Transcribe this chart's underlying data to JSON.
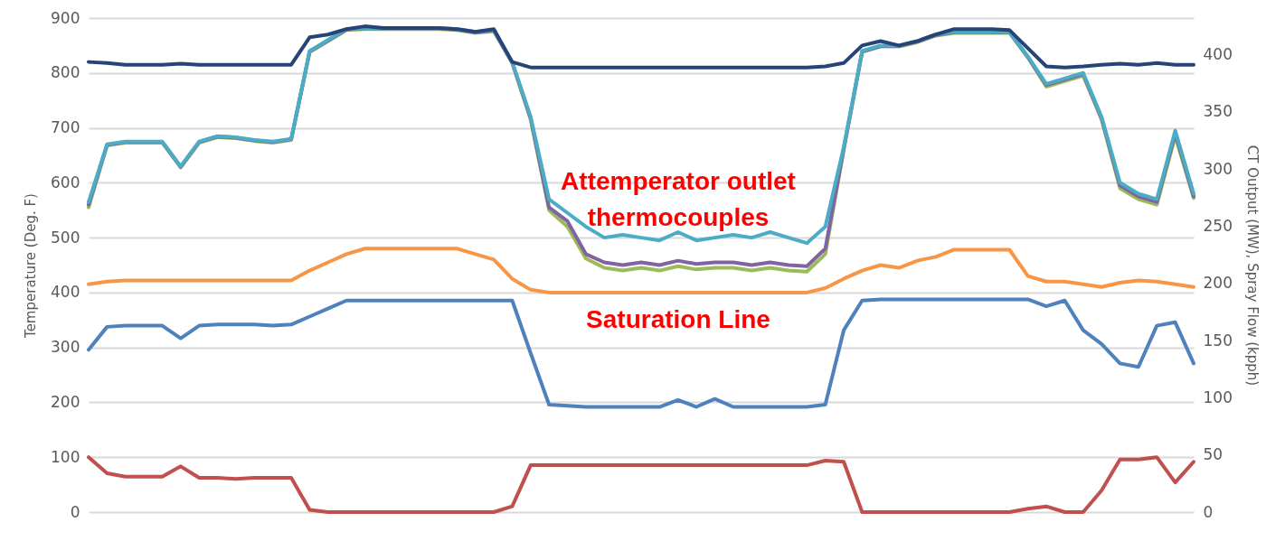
{
  "chart_data": {
    "type": "line",
    "ylabel": "Temperature (Deg. F)",
    "y2label": "CT Output (MW), Spray Flow (kpph)",
    "categories": [
      null,
      null,
      null,
      null,
      null,
      null,
      null,
      null,
      null,
      null,
      null,
      null,
      null,
      null,
      null,
      null,
      null,
      null,
      null,
      null,
      null,
      null,
      null,
      null,
      null,
      null,
      null,
      null,
      null,
      null,
      null,
      null,
      null,
      null,
      null,
      null,
      null,
      null,
      null,
      null,
      null,
      null,
      null,
      null,
      null,
      null,
      null,
      null,
      null,
      null,
      null,
      null,
      null,
      null,
      null,
      null,
      null,
      null,
      null,
      null,
      null
    ],
    "ylim": [
      0,
      900
    ],
    "yticks": [
      0,
      100,
      200,
      300,
      400,
      500,
      600,
      700,
      800,
      900
    ],
    "y2lim": [
      0,
      432
    ],
    "y2ticks": [
      0,
      50,
      100,
      150,
      200,
      250,
      300,
      350,
      400
    ],
    "grid": "y",
    "marker": "none",
    "line_style": "solid",
    "annotations": [
      "Attemperator outlet\nthermocouples",
      "Saturation Line"
    ],
    "series": [
      {
        "color": "#9bbb59",
        "values": [
          555,
          668,
          673,
          673,
          673,
          628,
          673,
          683,
          681,
          676,
          673,
          678,
          838,
          858,
          878,
          880,
          880,
          880,
          880,
          880,
          878,
          873,
          876,
          818,
          715,
          550,
          520,
          462,
          445,
          440,
          445,
          440,
          448,
          442,
          445,
          445,
          440,
          445,
          440,
          438,
          470,
          660,
          838,
          848,
          848,
          856,
          868,
          873,
          873,
          873,
          873,
          828,
          775,
          785,
          795,
          715,
          590,
          570,
          560,
          685,
          572
        ]
      },
      {
        "color": "#8064a2",
        "values": [
          560,
          669,
          674,
          674,
          674,
          629,
          674,
          684,
          682,
          677,
          674,
          679,
          839,
          859,
          879,
          881,
          881,
          881,
          881,
          881,
          879,
          874,
          877,
          819,
          718,
          555,
          530,
          470,
          455,
          450,
          455,
          450,
          458,
          452,
          455,
          455,
          450,
          455,
          450,
          448,
          480,
          662,
          839,
          849,
          849,
          857,
          869,
          874,
          874,
          874,
          874,
          829,
          778,
          788,
          798,
          718,
          595,
          575,
          565,
          690,
          575
        ]
      },
      {
        "color": "#4bacc6",
        "values": [
          565,
          670,
          675,
          675,
          675,
          630,
          675,
          685,
          683,
          678,
          675,
          680,
          840,
          860,
          880,
          882,
          882,
          882,
          882,
          882,
          880,
          875,
          878,
          820,
          720,
          570,
          545,
          520,
          500,
          505,
          500,
          495,
          510,
          495,
          500,
          505,
          500,
          510,
          500,
          490,
          520,
          665,
          840,
          850,
          850,
          858,
          870,
          875,
          875,
          875,
          875,
          830,
          780,
          790,
          800,
          720,
          600,
          580,
          570,
          695,
          580
        ]
      },
      {
        "color": "#f79646",
        "values": [
          415,
          420,
          422,
          422,
          422,
          422,
          422,
          422,
          422,
          422,
          422,
          422,
          440,
          455,
          470,
          480,
          480,
          480,
          480,
          480,
          480,
          470,
          460,
          425,
          405,
          400,
          400,
          400,
          400,
          400,
          400,
          400,
          400,
          400,
          400,
          400,
          400,
          400,
          400,
          400,
          408,
          425,
          440,
          450,
          445,
          458,
          465,
          478,
          478,
          478,
          478,
          430,
          420,
          420,
          415,
          410,
          418,
          422,
          420,
          415,
          410
        ]
      },
      {
        "color": "#4f81bd",
        "axis": "y2",
        "values": [
          142,
          162,
          163,
          163,
          163,
          152,
          163,
          164,
          164,
          164,
          163,
          164,
          171,
          178,
          185,
          185,
          185,
          185,
          185,
          185,
          185,
          185,
          185,
          185,
          139,
          94,
          93,
          92,
          92,
          92,
          92,
          92,
          98,
          92,
          99,
          92,
          92,
          92,
          92,
          92,
          94,
          159,
          185,
          186,
          186,
          186,
          186,
          186,
          186,
          186,
          186,
          186,
          180,
          185,
          159,
          147,
          130,
          127,
          163,
          166,
          130
        ]
      },
      {
        "color": "#c0504d",
        "axis": "y2",
        "values": [
          48,
          34,
          31,
          31,
          31,
          40,
          30,
          30,
          29,
          30,
          30,
          30,
          2,
          0,
          0,
          0,
          0,
          0,
          0,
          0,
          0,
          0,
          0,
          5,
          41,
          41,
          41,
          41,
          41,
          41,
          41,
          41,
          41,
          41,
          41,
          41,
          41,
          41,
          41,
          41,
          45,
          44,
          0,
          0,
          0,
          0,
          0,
          0,
          0,
          0,
          0,
          3,
          5,
          0,
          0,
          19,
          46,
          46,
          48,
          26,
          44
        ]
      },
      {
        "color": "#264478",
        "values": [
          820,
          818,
          815,
          815,
          815,
          817,
          815,
          815,
          815,
          815,
          815,
          815,
          865,
          870,
          880,
          885,
          882,
          882,
          882,
          882,
          880,
          875,
          880,
          820,
          810,
          810,
          810,
          810,
          810,
          810,
          810,
          810,
          810,
          810,
          810,
          810,
          810,
          810,
          810,
          810,
          812,
          818,
          850,
          858,
          850,
          858,
          870,
          880,
          880,
          880,
          878,
          845,
          812,
          810,
          812,
          815,
          817,
          815,
          818,
          815,
          815
        ]
      }
    ]
  }
}
